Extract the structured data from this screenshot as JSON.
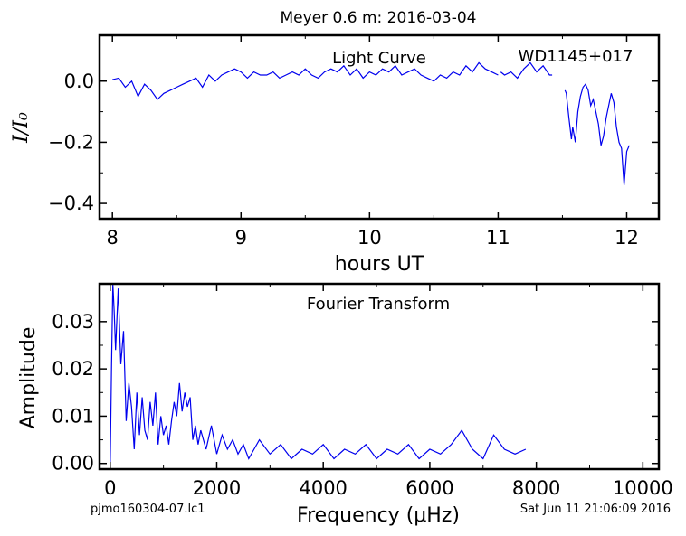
{
  "figure": {
    "title": "Meyer 0.6 m:  2016-03-04",
    "footer_left": "pjmo160304-07.lc1",
    "footer_right": "Sat Jun 11 21:06:09 2016"
  },
  "chart_data": [
    {
      "type": "line",
      "annotation_left": "Light Curve",
      "annotation_right": "WD1145+017",
      "xlabel": "hours UT",
      "ylabel": "I/I₀",
      "xlim": [
        7.9,
        12.25
      ],
      "ylim": [
        -0.45,
        0.15
      ],
      "xticks": [
        8,
        9,
        10,
        11,
        12
      ],
      "xtick_labels": [
        "8",
        "9",
        "10",
        "11",
        "12"
      ],
      "yticks": [
        0.0,
        -0.2,
        -0.4
      ],
      "ytick_labels": [
        "0.0",
        "−0.2",
        "−0.4"
      ],
      "color": "#0000ee",
      "series": [
        {
          "x": [
            8.0,
            8.05,
            8.1,
            8.15,
            8.2,
            8.25,
            8.3,
            8.35,
            8.4,
            8.45,
            8.5,
            8.55,
            8.6,
            8.65,
            8.7,
            8.75,
            8.8,
            8.85,
            8.9,
            8.95,
            9.0,
            9.05,
            9.1,
            9.15,
            9.2,
            9.25,
            9.3,
            9.35,
            9.4,
            9.45,
            9.5,
            9.55,
            9.6,
            9.65,
            9.7,
            9.75,
            9.8,
            9.85,
            9.9,
            9.95,
            10.0,
            10.05,
            10.1,
            10.15,
            10.2,
            10.25,
            10.3,
            10.35,
            10.4,
            10.45,
            10.5,
            10.55,
            10.6,
            10.65,
            10.7,
            10.75,
            10.8,
            10.85,
            10.9,
            10.95,
            11.0
          ],
          "y": [
            0.005,
            0.01,
            -0.02,
            0.0,
            -0.05,
            -0.01,
            -0.03,
            -0.06,
            -0.04,
            -0.03,
            -0.02,
            -0.01,
            0.0,
            0.01,
            -0.02,
            0.02,
            0.0,
            0.02,
            0.03,
            0.04,
            0.03,
            0.01,
            0.03,
            0.02,
            0.02,
            0.03,
            0.01,
            0.02,
            0.03,
            0.02,
            0.04,
            0.02,
            0.01,
            0.03,
            0.04,
            0.03,
            0.05,
            0.02,
            0.04,
            0.01,
            0.03,
            0.02,
            0.04,
            0.03,
            0.05,
            0.02,
            0.03,
            0.04,
            0.02,
            0.01,
            0.0,
            0.02,
            0.01,
            0.03,
            0.02,
            0.05,
            0.03,
            0.06,
            0.04,
            0.03,
            0.02
          ]
        },
        {
          "x": [
            11.02,
            11.05,
            11.1,
            11.15,
            11.2,
            11.25,
            11.3,
            11.35,
            11.4,
            11.42
          ],
          "y": [
            0.03,
            0.02,
            0.03,
            0.01,
            0.04,
            0.06,
            0.03,
            0.05,
            0.02,
            0.02
          ]
        },
        {
          "x": [
            11.52,
            11.53,
            11.55,
            11.57,
            11.58,
            11.6,
            11.62,
            11.64,
            11.66,
            11.68,
            11.7,
            11.72,
            11.74,
            11.76,
            11.78,
            11.8,
            11.82,
            11.84,
            11.86,
            11.88,
            11.9,
            11.92,
            11.94,
            11.96,
            11.98,
            12.0,
            12.02
          ],
          "y": [
            -0.03,
            -0.04,
            -0.12,
            -0.19,
            -0.15,
            -0.2,
            -0.1,
            -0.05,
            -0.02,
            -0.01,
            -0.03,
            -0.08,
            -0.06,
            -0.1,
            -0.14,
            -0.21,
            -0.18,
            -0.12,
            -0.08,
            -0.04,
            -0.07,
            -0.15,
            -0.2,
            -0.22,
            -0.34,
            -0.23,
            -0.21
          ]
        }
      ]
    },
    {
      "type": "line",
      "annotation": "Fourier Transform",
      "xlabel": "Frequency (μHz)",
      "ylabel": "Amplitude",
      "xlim": [
        -200,
        10300
      ],
      "ylim": [
        -0.0012,
        0.038
      ],
      "xticks": [
        0,
        2000,
        4000,
        6000,
        8000,
        10000
      ],
      "xtick_labels": [
        "0",
        "2000",
        "4000",
        "6000",
        "8000",
        "10000"
      ],
      "yticks": [
        0.0,
        0.01,
        0.02,
        0.03
      ],
      "ytick_labels": [
        "0.00",
        "0.01",
        "0.02",
        "0.03"
      ],
      "color": "#0000ee",
      "series": [
        {
          "x": [
            0,
            25,
            50,
            75,
            100,
            150,
            200,
            250,
            300,
            350,
            400,
            450,
            500,
            550,
            600,
            650,
            700,
            750,
            800,
            850,
            900,
            950,
            1000,
            1050,
            1100,
            1150,
            1200,
            1250,
            1300,
            1350,
            1400,
            1450,
            1500,
            1550,
            1600,
            1650,
            1700,
            1800,
            1900,
            2000,
            2100,
            2200,
            2300,
            2400,
            2500,
            2600,
            2800,
            3000,
            3200,
            3400,
            3600,
            3800,
            4000,
            4200,
            4400,
            4600,
            4800,
            5000,
            5200,
            5400,
            5600,
            5800,
            6000,
            6200,
            6400,
            6600,
            6800,
            7000,
            7200,
            7400,
            7600,
            7800
          ],
          "y": [
            0.0,
            0.02,
            0.038,
            0.032,
            0.024,
            0.037,
            0.021,
            0.028,
            0.009,
            0.017,
            0.012,
            0.003,
            0.015,
            0.006,
            0.014,
            0.007,
            0.005,
            0.013,
            0.008,
            0.015,
            0.004,
            0.01,
            0.006,
            0.008,
            0.004,
            0.009,
            0.013,
            0.01,
            0.017,
            0.011,
            0.015,
            0.012,
            0.014,
            0.005,
            0.008,
            0.004,
            0.007,
            0.003,
            0.008,
            0.002,
            0.006,
            0.003,
            0.005,
            0.002,
            0.004,
            0.001,
            0.005,
            0.002,
            0.004,
            0.001,
            0.003,
            0.002,
            0.004,
            0.001,
            0.003,
            0.002,
            0.004,
            0.001,
            0.003,
            0.002,
            0.004,
            0.001,
            0.003,
            0.002,
            0.004,
            0.007,
            0.003,
            0.001,
            0.006,
            0.003,
            0.002,
            0.003
          ]
        }
      ]
    }
  ]
}
